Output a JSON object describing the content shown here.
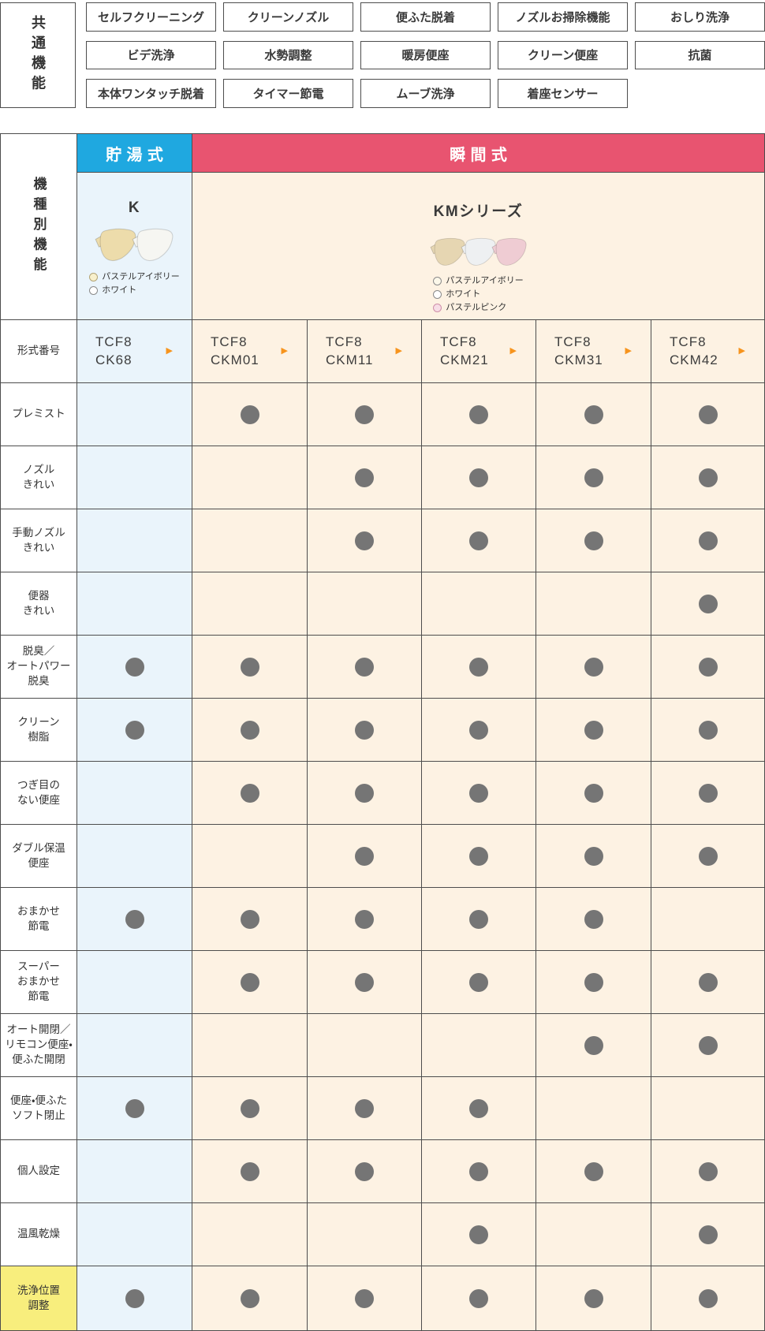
{
  "common_features": {
    "title": "共通機能",
    "rows": [
      [
        "セルフクリーニング",
        "クリーンノズル",
        "便ふた脱着",
        "ノズルお掃除機能",
        "おしり洗浄"
      ],
      [
        "ビデ洗浄",
        "水勢調整",
        "暖房便座",
        "クリーン便座",
        "抗菌"
      ],
      [
        "本体ワンタッチ脱着",
        "タイマー節電",
        "ムーブ洗浄",
        "着座センサー"
      ]
    ]
  },
  "model_table": {
    "title": "機種別機能",
    "heating_types": [
      {
        "label": "貯湯式",
        "color": "#1fa8e0"
      },
      {
        "label": "瞬間式",
        "color": "#e85470"
      }
    ],
    "series": [
      {
        "name": "K",
        "seat_colors": [
          "#eddcab",
          "#f6f6f2"
        ],
        "color_options": [
          {
            "label": "パステルアイボリー",
            "swatch": "#f8f0cc",
            "ring": "#b3a476"
          },
          {
            "label": "ホワイト",
            "swatch": "#ffffff",
            "ring": "#8a8a8a"
          }
        ]
      },
      {
        "name": "KMシリーズ",
        "seat_colors": [
          "#e6d6b2",
          "#eef0f2",
          "#efccd3"
        ],
        "color_options": [
          {
            "label": "パステルアイボリー",
            "swatch": "#fcf8ea",
            "ring": "#8a8a8a"
          },
          {
            "label": "ホワイト",
            "swatch": "#ffffff",
            "ring": "#8a8a8a"
          },
          {
            "label": "パステルピンク",
            "swatch": "#f7dde6",
            "ring": "#cf8fa9"
          }
        ]
      }
    ],
    "model_number_label": "形式番号",
    "models": [
      {
        "line1": "TCF8",
        "line2": "CK68",
        "type": "tank"
      },
      {
        "line1": "TCF8",
        "line2": "CKM01",
        "type": "instant"
      },
      {
        "line1": "TCF8",
        "line2": "CKM11",
        "type": "instant"
      },
      {
        "line1": "TCF8",
        "line2": "CKM21",
        "type": "instant"
      },
      {
        "line1": "TCF8",
        "line2": "CKM31",
        "type": "instant"
      },
      {
        "line1": "TCF8",
        "line2": "CKM42",
        "type": "instant"
      }
    ],
    "features": [
      {
        "label": "プレミスト",
        "availability": [
          0,
          1,
          1,
          1,
          1,
          1
        ]
      },
      {
        "label": "ノズル\nきれい",
        "availability": [
          0,
          0,
          1,
          1,
          1,
          1
        ]
      },
      {
        "label": "手動ノズル\nきれい",
        "availability": [
          0,
          0,
          1,
          1,
          1,
          1
        ]
      },
      {
        "label": "便器\nきれい",
        "availability": [
          0,
          0,
          0,
          0,
          0,
          1
        ]
      },
      {
        "label": "脱臭／\nオートパワー\n脱臭",
        "availability": [
          1,
          1,
          1,
          1,
          1,
          1
        ]
      },
      {
        "label": "クリーン\n樹脂",
        "availability": [
          1,
          1,
          1,
          1,
          1,
          1
        ]
      },
      {
        "label": "つぎ目の\nない便座",
        "availability": [
          0,
          1,
          1,
          1,
          1,
          1
        ]
      },
      {
        "label": "ダブル保温\n便座",
        "availability": [
          0,
          0,
          1,
          1,
          1,
          1
        ]
      },
      {
        "label": "おまかせ\n節電",
        "availability": [
          1,
          1,
          1,
          1,
          1,
          0
        ]
      },
      {
        "label": "スーパー\nおまかせ\n節電",
        "availability": [
          0,
          1,
          1,
          1,
          1,
          1
        ]
      },
      {
        "label": "オート開閉／\nリモコン便座・\n便ふた開閉",
        "availability": [
          0,
          0,
          0,
          0,
          1,
          1
        ]
      },
      {
        "label": "便座・便ふた\nソフト閉止",
        "availability": [
          1,
          1,
          1,
          1,
          0,
          0
        ]
      },
      {
        "label": "個人設定",
        "availability": [
          0,
          1,
          1,
          1,
          1,
          1
        ]
      },
      {
        "label": "温風乾燥",
        "availability": [
          0,
          0,
          0,
          1,
          0,
          1
        ]
      },
      {
        "label": "洗浄位置\n調整",
        "availability": [
          1,
          1,
          1,
          1,
          1,
          1
        ],
        "highlighted": true
      }
    ]
  },
  "colors": {
    "tank_column_bg": "#eaf4fb",
    "instant_column_bg": "#fdf2e3",
    "highlight_label_bg": "#f8ee7d",
    "dot": "#757575",
    "border": "#4d4d4d",
    "arrow": "#f7941d"
  }
}
